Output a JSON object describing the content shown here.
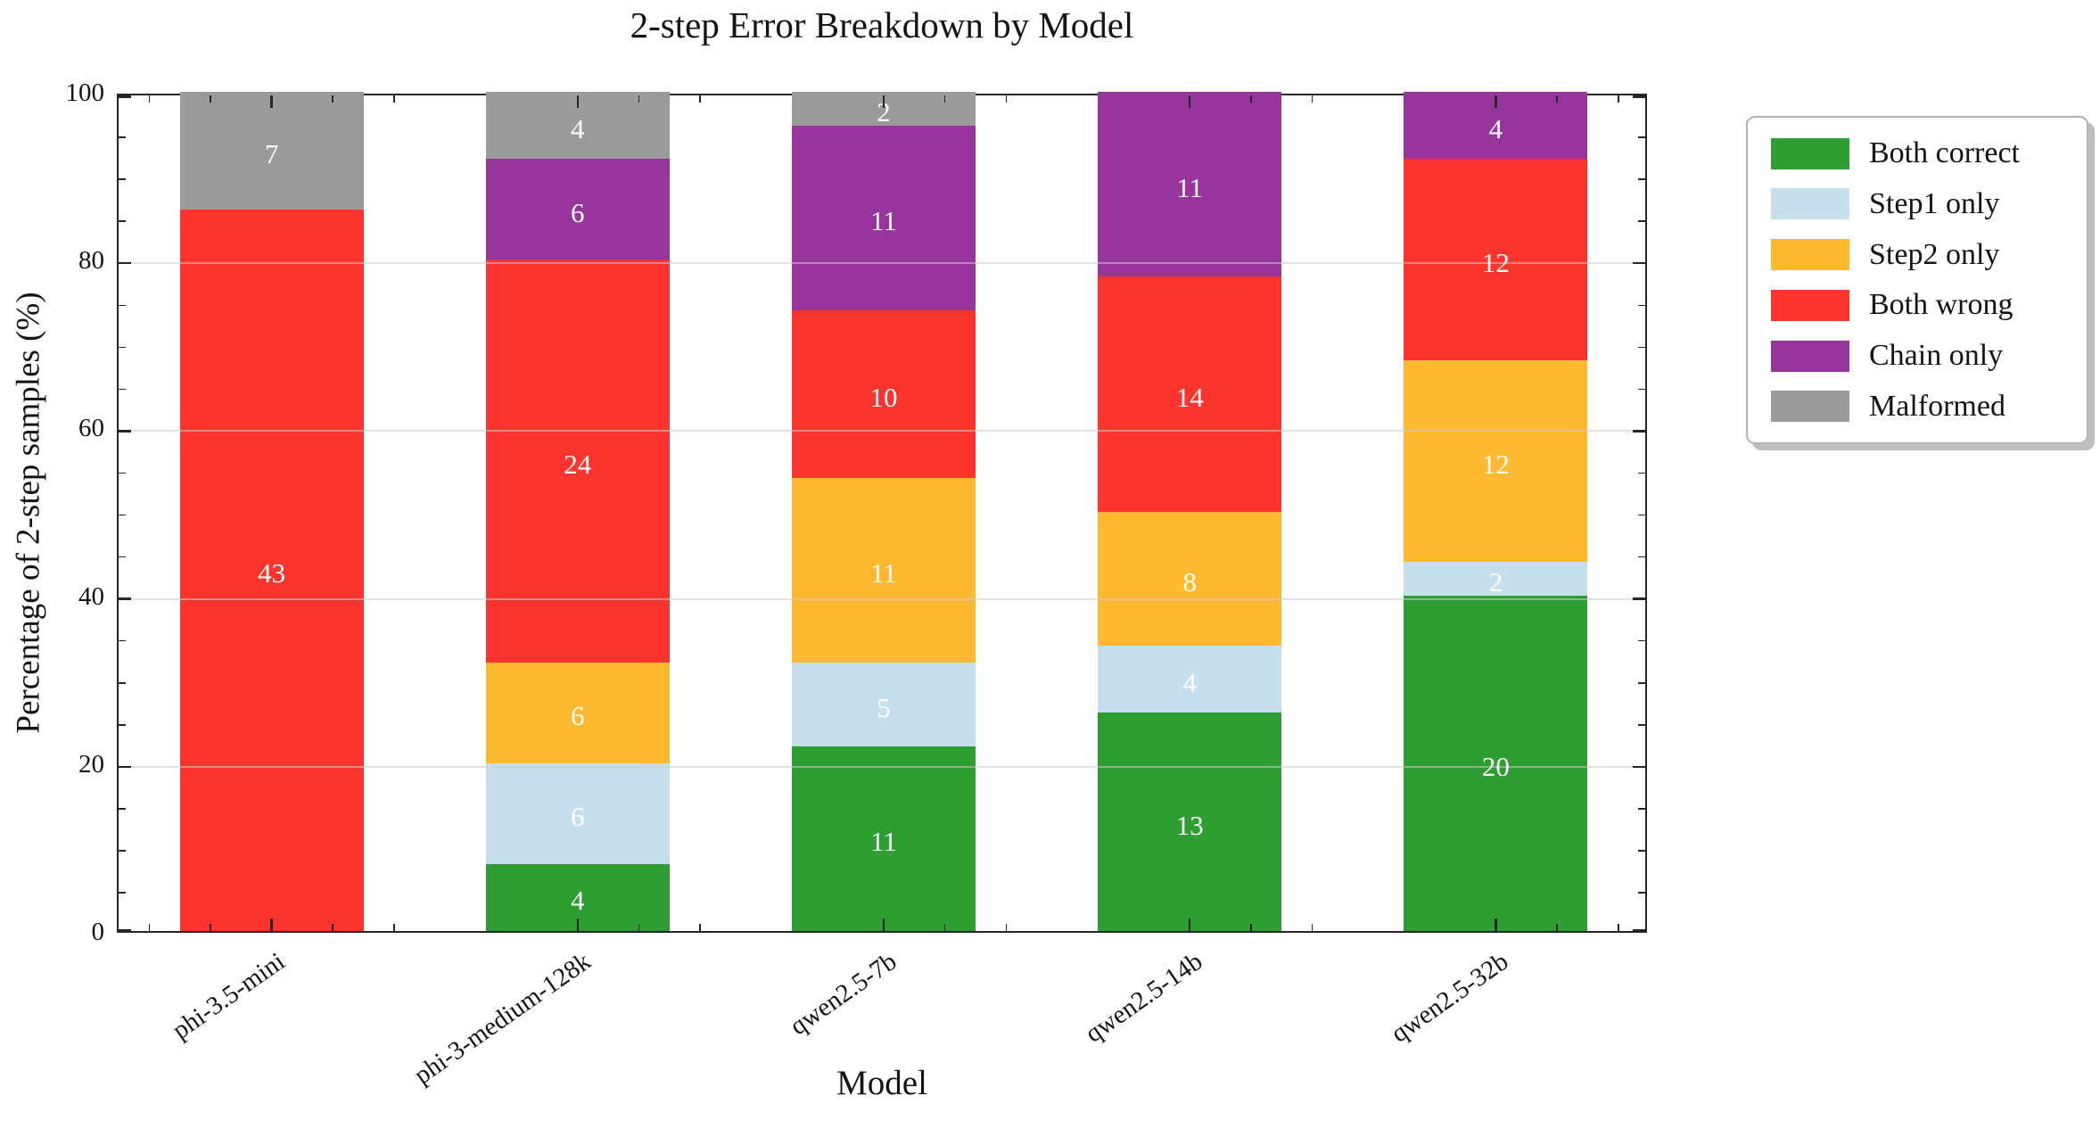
{
  "chart_data": {
    "type": "bar",
    "stacked": true,
    "title": "2-step Error Breakdown by Model",
    "xlabel": "Model",
    "ylabel": "Percentage of 2-step samples (%)",
    "ylim": [
      0,
      100
    ],
    "yticks": [
      0,
      20,
      40,
      60,
      80,
      100
    ],
    "y_minor_tick_step": 5,
    "grid": "horizontal gridlines at 20/40/60/80, light gray, drawn over bars",
    "categories": [
      "phi-3.5-mini",
      "phi-3-medium-128k",
      "qwen2.5-7b",
      "qwen2.5-14b",
      "qwen2.5-32b"
    ],
    "series": [
      {
        "name": "Both correct",
        "color": "#2e9d32",
        "values": [
          0,
          4,
          11,
          13,
          20
        ]
      },
      {
        "name": "Step1 only",
        "color": "#c5dfec",
        "values": [
          0,
          6,
          5,
          4,
          2
        ]
      },
      {
        "name": "Step2 only",
        "color": "#fdb92f",
        "values": [
          0,
          6,
          11,
          8,
          12
        ]
      },
      {
        "name": "Both wrong",
        "color": "#fb352e",
        "values": [
          43,
          24,
          10,
          14,
          12
        ]
      },
      {
        "name": "Chain only",
        "color": "#97359c",
        "values": [
          0,
          6,
          11,
          11,
          4
        ]
      },
      {
        "name": "Malformed",
        "color": "#9b9b9b",
        "values": [
          7,
          4,
          2,
          0,
          0
        ]
      }
    ],
    "value_to_percent_factor": 2,
    "bar_value_labels": "segment counts shown in white at segment centers; bar height percent = count × 2 (50 samples per model)",
    "legend_position": "outside upper right",
    "axis_color": "#262626",
    "bar_label_color": "#ffffff"
  }
}
